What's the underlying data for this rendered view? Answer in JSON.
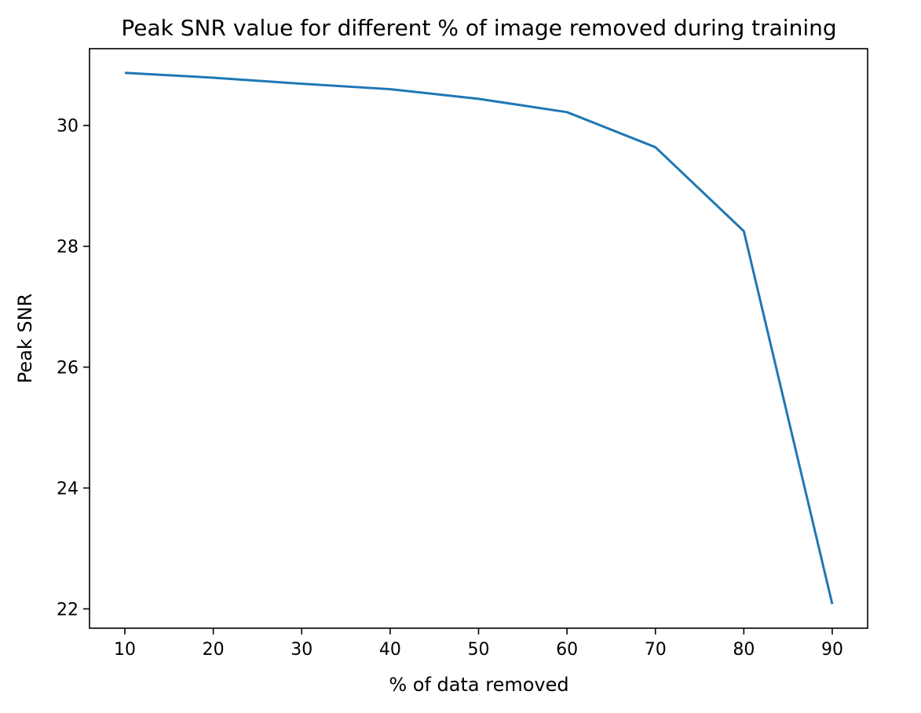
{
  "chart_data": {
    "type": "line",
    "title": "Peak SNR value for different % of image removed during training",
    "xlabel": "% of data removed",
    "ylabel": "Peak SNR",
    "x": [
      10,
      20,
      30,
      40,
      50,
      60,
      70,
      80,
      90
    ],
    "series": [
      {
        "values": [
          30.87,
          30.79,
          30.69,
          30.6,
          30.44,
          30.22,
          29.64,
          28.25,
          22.08
        ],
        "color": "#1f77b4"
      }
    ],
    "xticks": [
      "10",
      "20",
      "30",
      "40",
      "50",
      "60",
      "70",
      "80",
      "90"
    ],
    "yticks": [
      "22",
      "24",
      "26",
      "28",
      "30"
    ],
    "xlim": [
      6,
      94
    ],
    "ylim": [
      21.68,
      31.27
    ],
    "grid": false,
    "legend": "none"
  }
}
